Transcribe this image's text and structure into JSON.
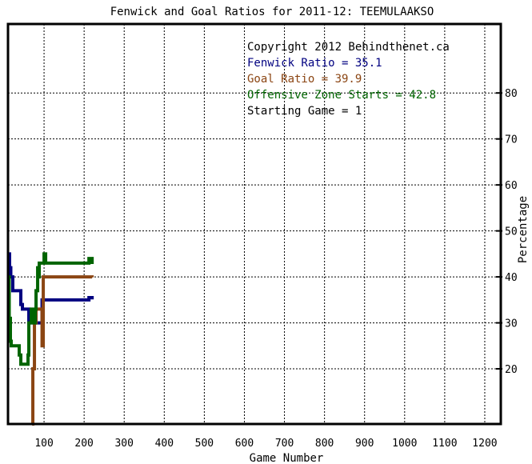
{
  "chart_data": {
    "type": "line",
    "title": "Fenwick and Goal Ratios for 2011-12: TEEMULAAKSO",
    "xlabel": "Game Number",
    "ylabel": "Percentage",
    "xlim": [
      10,
      1240
    ],
    "ylim": [
      8,
      95
    ],
    "xticks": [
      100,
      200,
      300,
      400,
      500,
      600,
      700,
      800,
      900,
      1000,
      1100,
      1200
    ],
    "yticks": [
      20,
      30,
      40,
      50,
      60,
      70,
      80
    ],
    "grid": true,
    "legend_placement": "top-right",
    "annotations": [
      {
        "text": "Copyright 2012 Behindthenet.ca",
        "color": "#000000"
      },
      {
        "text": "Fenwick Ratio = 35.1",
        "color": "#000080"
      },
      {
        "text": "Goal Ratio = 39.9",
        "color": "#8b4513"
      },
      {
        "text": "Offensive Zone Starts = 42.8",
        "color": "#006400"
      },
      {
        "text": "Starting Game = 1",
        "color": "#000000"
      }
    ],
    "series": [
      {
        "name": "Fenwick Ratio",
        "color": "#000080",
        "points": [
          [
            10,
            45
          ],
          [
            14,
            42
          ],
          [
            17,
            40
          ],
          [
            22,
            37
          ],
          [
            40,
            37
          ],
          [
            42,
            34
          ],
          [
            46,
            33
          ],
          [
            58,
            33
          ],
          [
            62,
            30
          ],
          [
            66,
            31
          ],
          [
            70,
            30
          ],
          [
            90,
            30
          ],
          [
            95,
            35
          ],
          [
            130,
            35
          ],
          [
            200,
            35
          ],
          [
            212,
            35.5
          ],
          [
            220,
            35.1
          ]
        ]
      },
      {
        "name": "Goal Ratio",
        "color": "#8b4513",
        "points": [
          [
            70,
            8
          ],
          [
            72,
            20
          ],
          [
            76,
            30
          ],
          [
            80,
            33
          ],
          [
            88,
            33
          ],
          [
            92,
            33
          ],
          [
            95,
            25
          ],
          [
            98,
            40
          ],
          [
            130,
            40
          ],
          [
            200,
            40
          ],
          [
            220,
            39.9
          ]
        ]
      },
      {
        "name": "Offensive Zone Starts",
        "color": "#006400",
        "points": [
          [
            10,
            40
          ],
          [
            13,
            31
          ],
          [
            16,
            26
          ],
          [
            18,
            25
          ],
          [
            28,
            25
          ],
          [
            32,
            25
          ],
          [
            38,
            23
          ],
          [
            42,
            21
          ],
          [
            55,
            21
          ],
          [
            60,
            23
          ],
          [
            62,
            30
          ],
          [
            68,
            33
          ],
          [
            72,
            30
          ],
          [
            78,
            33
          ],
          [
            80,
            37
          ],
          [
            84,
            42
          ],
          [
            86,
            40
          ],
          [
            88,
            43
          ],
          [
            94,
            43
          ],
          [
            100,
            45
          ],
          [
            104,
            43
          ],
          [
            150,
            43
          ],
          [
            200,
            43
          ],
          [
            212,
            44
          ],
          [
            220,
            42.8
          ]
        ]
      }
    ]
  }
}
